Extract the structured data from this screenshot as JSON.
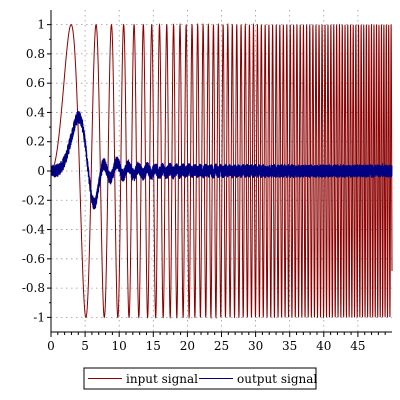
{
  "chart_data": {
    "type": "line",
    "title": "",
    "xlabel": "",
    "ylabel": "",
    "xlim": [
      0,
      50
    ],
    "ylim": [
      -1.1,
      1.1
    ],
    "grid": true,
    "legend_position": "bottom-center",
    "x_ticks": [
      {
        "value": 0,
        "label": "0"
      },
      {
        "value": 5,
        "label": "5"
      },
      {
        "value": 10,
        "label": "10"
      },
      {
        "value": 15,
        "label": "15"
      },
      {
        "value": 20,
        "label": "20"
      },
      {
        "value": 25,
        "label": "25"
      },
      {
        "value": 30,
        "label": "30"
      },
      {
        "value": 35,
        "label": "35"
      },
      {
        "value": 40,
        "label": "40"
      },
      {
        "value": 45,
        "label": "45"
      }
    ],
    "y_ticks": [
      {
        "value": 1,
        "label": "1"
      },
      {
        "value": 0.8,
        "label": "0.8"
      },
      {
        "value": 0.6,
        "label": "0.6"
      },
      {
        "value": 0.4,
        "label": "0.4"
      },
      {
        "value": 0.2,
        "label": "0.2"
      },
      {
        "value": 0,
        "label": "0"
      },
      {
        "value": -0.2,
        "label": "-0.2"
      },
      {
        "value": -0.4,
        "label": "-0.4"
      },
      {
        "value": -0.6,
        "label": "-0.6"
      },
      {
        "value": -0.8,
        "label": "-0.8"
      },
      {
        "value": -1,
        "label": "-1"
      }
    ],
    "series": [
      {
        "name": "input signal",
        "color": "#8b0000",
        "description_model": "chirp sin(0.18*t^2)"
      },
      {
        "name": "output signal",
        "color": "#000080",
        "description_model": "low-pass response with noise"
      }
    ]
  }
}
